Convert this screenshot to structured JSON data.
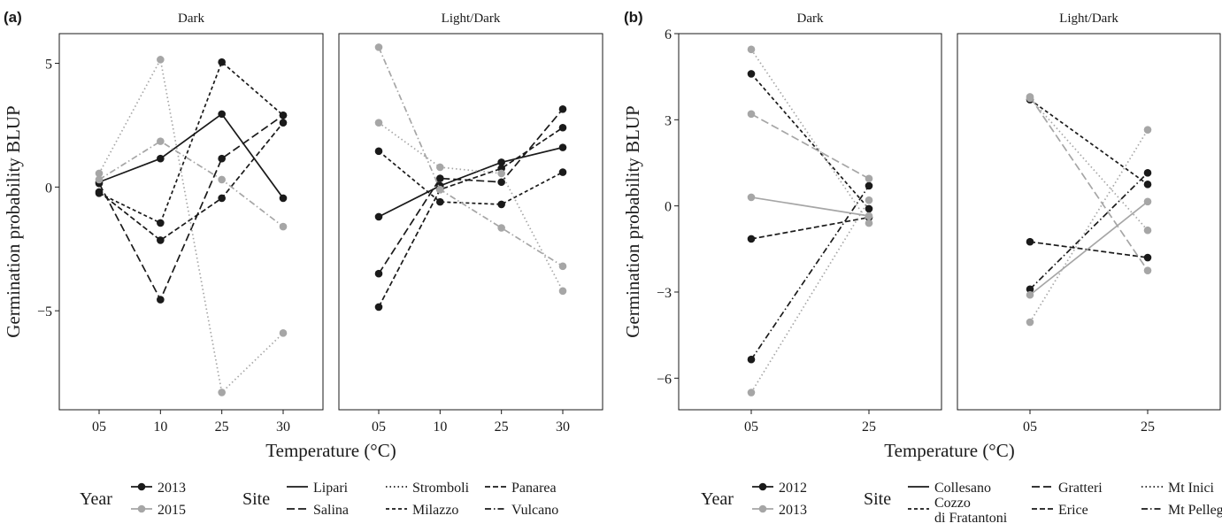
{
  "figure": {
    "panel_a_label": "(a)",
    "panel_b_label": "(b)"
  },
  "colors": {
    "dark": "#1a1a1a",
    "light": "#a6a6a6"
  },
  "chart_data": [
    {
      "type": "line",
      "panel_label": "(a)",
      "facets": [
        "Dark",
        "Light/Dark"
      ],
      "categories": [
        "05",
        "10",
        "25",
        "30"
      ],
      "xlabel": "Temperature (°C)",
      "ylabel": "Germination probability BLUP",
      "ylim": [
        -9,
        6.2
      ],
      "yticks": [
        -5,
        0,
        5
      ],
      "legend": {
        "year_title": "Year",
        "years": [
          "2013",
          "2015"
        ],
        "site_title": "Site",
        "sites": [
          {
            "name": "Lipari",
            "dash": "solid"
          },
          {
            "name": "Salina",
            "dash": "longdash"
          },
          {
            "name": "Stromboli",
            "dash": "dotted"
          },
          {
            "name": "Milazzo",
            "dash": "dashed"
          },
          {
            "name": "Panarea",
            "dash": "dashed2"
          },
          {
            "name": "Vulcano",
            "dash": "dotdash"
          }
        ]
      },
      "series": [
        {
          "facet": "Dark",
          "site": "Lipari",
          "year": "2013",
          "values": [
            0.2,
            1.15,
            2.95,
            -0.45
          ]
        },
        {
          "facet": "Dark",
          "site": "Milazzo",
          "year": "2013",
          "values": [
            -0.25,
            -1.45,
            5.05,
            2.9
          ]
        },
        {
          "facet": "Dark",
          "site": "Salina",
          "year": "2013",
          "values": [
            0.15,
            -4.55,
            1.15,
            2.9
          ]
        },
        {
          "facet": "Dark",
          "site": "Panarea",
          "year": "2013",
          "values": [
            -0.2,
            -2.15,
            -0.45,
            2.6
          ]
        },
        {
          "facet": "Dark",
          "site": "Stromboli",
          "year": "2015",
          "values": [
            0.55,
            5.15,
            -8.3,
            -5.9
          ]
        },
        {
          "facet": "Dark",
          "site": "Vulcano",
          "year": "2015",
          "values": [
            0.3,
            1.85,
            0.3,
            -1.6
          ]
        },
        {
          "facet": "Light/Dark",
          "site": "Lipari",
          "year": "2013",
          "values": [
            -1.2,
            0.05,
            1.0,
            1.6
          ]
        },
        {
          "facet": "Light/Dark",
          "site": "Milazzo",
          "year": "2013",
          "values": [
            1.45,
            -0.6,
            -0.7,
            0.6
          ]
        },
        {
          "facet": "Light/Dark",
          "site": "Salina",
          "year": "2013",
          "values": [
            -3.5,
            0.35,
            0.2,
            3.15
          ]
        },
        {
          "facet": "Light/Dark",
          "site": "Panarea",
          "year": "2013",
          "values": [
            -4.85,
            -0.1,
            0.75,
            2.4
          ]
        },
        {
          "facet": "Light/Dark",
          "site": "Stromboli",
          "year": "2015",
          "values": [
            2.6,
            0.8,
            0.55,
            -4.2
          ]
        },
        {
          "facet": "Light/Dark",
          "site": "Vulcano",
          "year": "2015",
          "values": [
            5.65,
            -0.1,
            -1.65,
            -3.2
          ]
        }
      ]
    },
    {
      "type": "line",
      "panel_label": "(b)",
      "facets": [
        "Dark",
        "Light/Dark"
      ],
      "categories": [
        "05",
        "25"
      ],
      "xlabel": "Temperature (°C)",
      "ylabel": "Germination probability BLUP",
      "ylim": [
        -7.1,
        6.0
      ],
      "yticks": [
        -6,
        -3,
        0,
        3,
        6
      ],
      "legend": {
        "year_title": "Year",
        "years": [
          "2012",
          "2013"
        ],
        "site_title": "Site",
        "sites": [
          {
            "name": "Collesano",
            "dash": "solid"
          },
          {
            "name": "Cozzo di Fratantoni",
            "dash": "dashed"
          },
          {
            "name": "Gratteri",
            "dash": "longdash"
          },
          {
            "name": "Erice",
            "dash": "dashed2"
          },
          {
            "name": "Mt Inici",
            "dash": "dotted"
          },
          {
            "name": "Mt Pellegrino",
            "dash": "dotdash"
          }
        ]
      },
      "series": [
        {
          "facet": "Dark",
          "site": "Cozzo di Fratantoni",
          "year": "2012",
          "values": [
            4.6,
            -0.1
          ]
        },
        {
          "facet": "Dark",
          "site": "Erice",
          "year": "2012",
          "values": [
            -1.15,
            -0.4
          ]
        },
        {
          "facet": "Dark",
          "site": "Mt Pellegrino",
          "year": "2012",
          "values": [
            -5.35,
            0.7
          ]
        },
        {
          "facet": "Dark",
          "site": "Mt Inici",
          "year": "2013",
          "values": [
            5.45,
            -0.6
          ]
        },
        {
          "facet": "Dark",
          "site": "Gratteri",
          "year": "2013",
          "values": [
            3.2,
            0.95
          ]
        },
        {
          "facet": "Dark",
          "site": "Collesano",
          "year": "2013",
          "values": [
            0.3,
            -0.35
          ]
        },
        {
          "facet": "Dark",
          "site": "Mt Inici",
          "year": "2013",
          "values": [
            -6.5,
            0.2
          ]
        },
        {
          "facet": "Light/Dark",
          "site": "Cozzo di Fratantoni",
          "year": "2012",
          "values": [
            3.7,
            0.75
          ]
        },
        {
          "facet": "Light/Dark",
          "site": "Erice",
          "year": "2012",
          "values": [
            -1.25,
            -1.8
          ]
        },
        {
          "facet": "Light/Dark",
          "site": "Mt Pellegrino",
          "year": "2012",
          "values": [
            -2.9,
            1.15
          ]
        },
        {
          "facet": "Light/Dark",
          "site": "Gratteri",
          "year": "2013",
          "values": [
            3.8,
            -2.25
          ]
        },
        {
          "facet": "Light/Dark",
          "site": "Mt Inici",
          "year": "2013",
          "values": [
            3.75,
            -0.85
          ]
        },
        {
          "facet": "Light/Dark",
          "site": "Collesano",
          "year": "2013",
          "values": [
            -3.1,
            0.15
          ]
        },
        {
          "facet": "Light/Dark",
          "site": "Mt Inici",
          "year": "2013",
          "values": [
            -4.05,
            2.65
          ]
        }
      ]
    }
  ]
}
